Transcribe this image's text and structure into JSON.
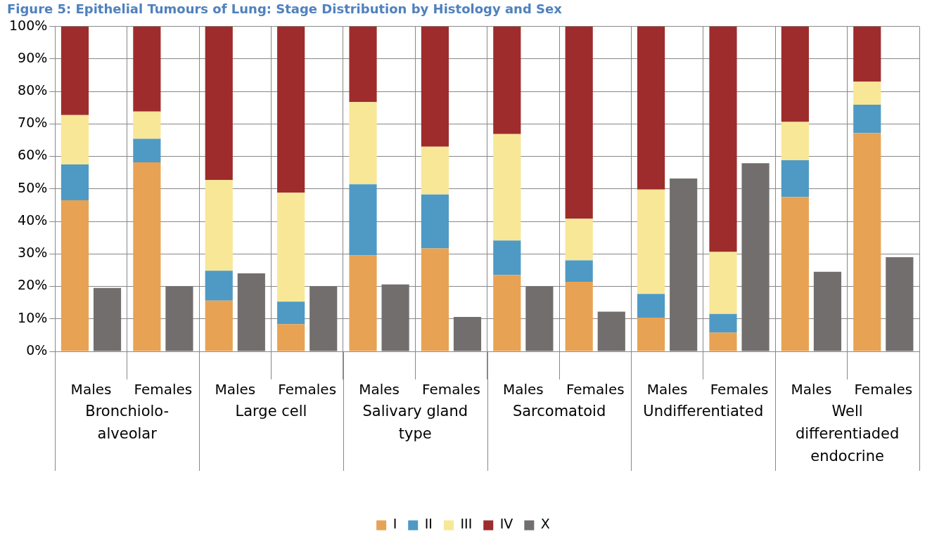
{
  "chart_data": {
    "type": "bar",
    "title": "Figure 5: Epithelial Tumours of Lung: Stage Distribution by Histology and Sex",
    "categories": [
      "Males",
      "Females",
      "Males",
      "Females",
      "Males",
      "Females",
      "Males",
      "Females",
      "Males",
      "Females",
      "Males",
      "Females"
    ],
    "annotations": [
      "Bronchiolo-alveolar",
      "Large cell",
      "Salivary gland type",
      "Sarcomatoid",
      "Undifferentiated",
      "Well differentiaded endocrine"
    ],
    "series": [
      {
        "name": "I",
        "color": "#e8a254",
        "base": [
          0,
          0,
          0,
          0,
          0,
          0,
          0,
          0,
          0,
          0,
          0,
          0
        ],
        "values": [
          46.5,
          58.2,
          15.6,
          8.4,
          29.6,
          31.7,
          23.5,
          21.4,
          10.4,
          5.8,
          47.5,
          67.2
        ]
      },
      {
        "name": "II",
        "color": "#4e9ac4",
        "base": [
          46.5,
          58.2,
          15.6,
          8.4,
          29.6,
          31.7,
          23.5,
          21.4,
          10.4,
          5.8,
          47.5,
          67.2
        ],
        "values": [
          11.0,
          7.2,
          9.2,
          6.9,
          21.8,
          16.6,
          10.6,
          6.6,
          7.3,
          5.7,
          11.3,
          8.7
        ]
      },
      {
        "name": "III",
        "color": "#f8e796",
        "base": [
          57.5,
          65.4,
          24.8,
          15.3,
          51.4,
          48.3,
          34.1,
          28.0,
          17.7,
          11.5,
          58.8,
          75.9
        ],
        "values": [
          15.2,
          8.4,
          27.9,
          33.5,
          25.3,
          14.7,
          32.8,
          12.8,
          32.1,
          19.1,
          11.8,
          7.1
        ]
      },
      {
        "name": "IV",
        "color": "#9e2c2c",
        "base": [
          72.7,
          73.8,
          52.7,
          48.8,
          76.7,
          63.0,
          66.9,
          40.8,
          49.8,
          30.6,
          70.6,
          83.0
        ],
        "values": [
          27.3,
          26.2,
          47.3,
          51.2,
          23.3,
          37.0,
          33.1,
          59.2,
          50.2,
          69.4,
          29.4,
          17.0
        ]
      },
      {
        "name": "X",
        "type": "bar",
        "color": "#726e6d",
        "values": [
          19.5,
          20.0,
          24.0,
          20.0,
          20.6,
          10.6,
          20.0,
          12.2,
          53.2,
          57.9,
          24.5,
          29.0
        ]
      }
    ],
    "ylim": [
      0,
      100
    ],
    "yticks": [
      {
        "value": 0,
        "label": "0%"
      },
      {
        "value": 10,
        "label": "10%"
      },
      {
        "value": 20,
        "label": "20%"
      },
      {
        "value": 30,
        "label": "30%"
      },
      {
        "value": 40,
        "label": "40%"
      },
      {
        "value": 50,
        "label": "50%"
      },
      {
        "value": 60,
        "label": "60%"
      },
      {
        "value": 70,
        "label": "70%"
      },
      {
        "value": 80,
        "label": "80%"
      },
      {
        "value": 90,
        "label": "90%"
      },
      {
        "value": 100,
        "label": "100%"
      }
    ],
    "grid": true,
    "legend": "bottom"
  }
}
